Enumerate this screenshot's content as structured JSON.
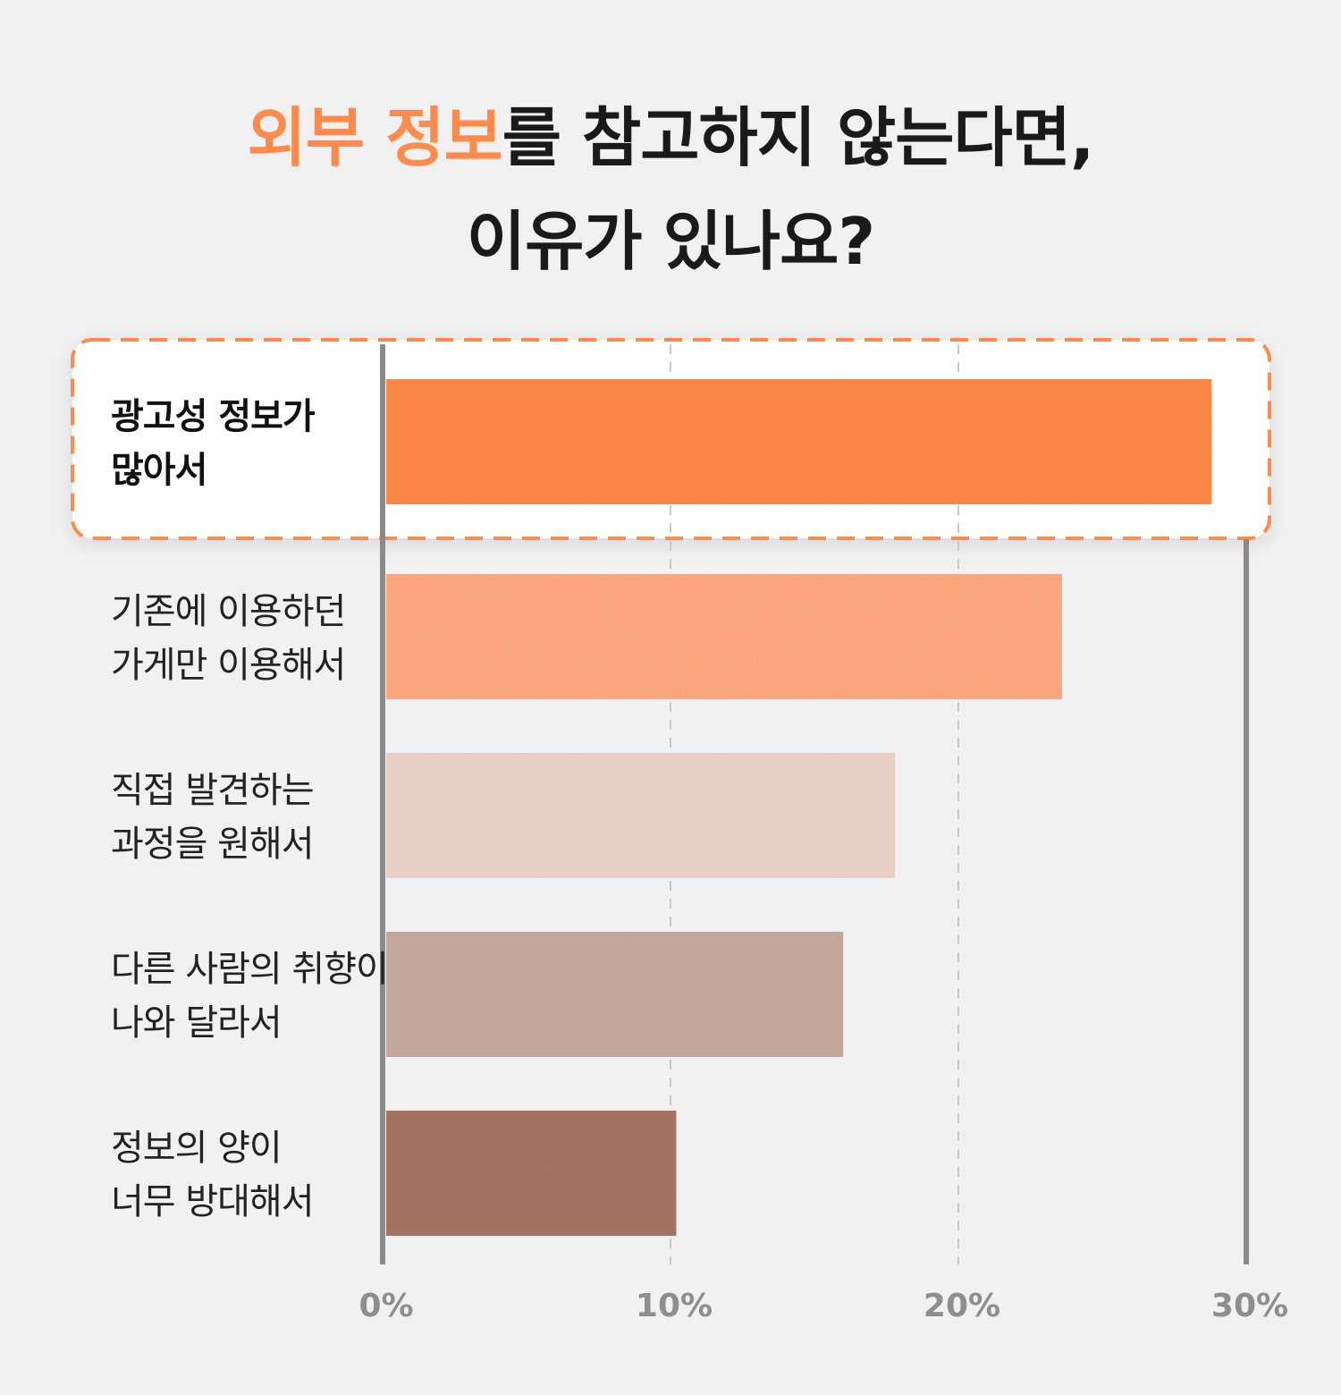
{
  "title": {
    "accent": "외부 정보",
    "rest1": "를 참고하지 않는다면,",
    "line2": "이유가 있나요?"
  },
  "chart_data": {
    "type": "bar",
    "orientation": "horizontal",
    "categories": [
      [
        "광고성 정보가",
        "많아서"
      ],
      [
        "기존에 이용하던",
        "가게만 이용해서"
      ],
      [
        "직접 발견하는",
        "과정을 원해서"
      ],
      [
        "다른 사람의 취향이",
        "나와 달라서"
      ],
      [
        "정보의 양이",
        "너무 방대해서"
      ]
    ],
    "values": [
      28.8,
      23.6,
      17.8,
      16.0,
      10.2
    ],
    "colors": [
      "#ff8a47",
      "#ffa97e",
      "#ecd3ca",
      "#c6aaa0",
      "#a87563"
    ],
    "highlight_index": 0,
    "highlight_color": "#ff8a4c",
    "xlim": [
      0,
      30
    ],
    "xticks": [
      0,
      10,
      20,
      30
    ],
    "xtick_labels": [
      "0%",
      "10%",
      "20%",
      "30%"
    ],
    "grid": "dashed vertical",
    "title": "",
    "xlabel": "",
    "ylabel": ""
  }
}
